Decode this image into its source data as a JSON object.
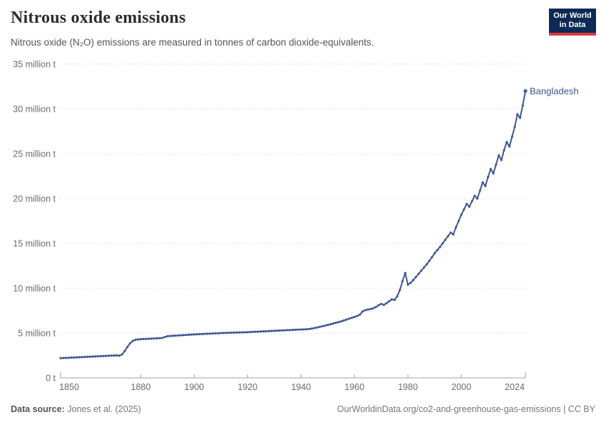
{
  "header": {
    "title": "Nitrous oxide emissions",
    "subtitle": "Nitrous oxide (N₂O) emissions are measured in tonnes of carbon dioxide-equivalents.",
    "logo_line1": "Our World",
    "logo_line2": "in Data"
  },
  "footer": {
    "source_label": "Data source:",
    "source_value": "Jones et al. (2025)",
    "link": "OurWorldinData.org/co2-and-greenhouse-gas-emissions | CC BY"
  },
  "chart_data": {
    "type": "line",
    "title": "Nitrous oxide emissions",
    "unit": "tonnes of carbon dioxide-equivalents",
    "ylim_millions": [
      0,
      35
    ],
    "grid": "horizontal-dashed",
    "legend_position": "end-of-line-label",
    "y_ticks": [
      {
        "v": 0,
        "label": "0 t"
      },
      {
        "v": 5,
        "label": "5 million t"
      },
      {
        "v": 10,
        "label": "10 million t"
      },
      {
        "v": 15,
        "label": "15 million t"
      },
      {
        "v": 20,
        "label": "20 million t"
      },
      {
        "v": 25,
        "label": "25 million t"
      },
      {
        "v": 30,
        "label": "30 million t"
      },
      {
        "v": 35,
        "label": "35 million t"
      }
    ],
    "x_ticks": [
      1850,
      1880,
      1900,
      1920,
      1940,
      1960,
      1980,
      2000,
      2024
    ],
    "series": [
      {
        "name": "Bangladesh",
        "color": "#3e598f",
        "x_start": 1850,
        "x_end": 2024,
        "values_millions": [
          2.2,
          2.21,
          2.23,
          2.24,
          2.26,
          2.27,
          2.29,
          2.3,
          2.32,
          2.33,
          2.35,
          2.36,
          2.38,
          2.39,
          2.41,
          2.42,
          2.44,
          2.45,
          2.47,
          2.48,
          2.5,
          2.51,
          2.48,
          2.62,
          3.0,
          3.45,
          3.85,
          4.12,
          4.25,
          4.3,
          4.32,
          4.34,
          4.35,
          4.37,
          4.38,
          4.4,
          4.41,
          4.43,
          4.45,
          4.55,
          4.65,
          4.67,
          4.69,
          4.71,
          4.73,
          4.75,
          4.77,
          4.79,
          4.81,
          4.83,
          4.85,
          4.86,
          4.88,
          4.89,
          4.91,
          4.92,
          4.94,
          4.95,
          4.97,
          4.98,
          5.0,
          5.01,
          5.02,
          5.03,
          5.04,
          5.05,
          5.06,
          5.07,
          5.08,
          5.09,
          5.1,
          5.12,
          5.13,
          5.15,
          5.16,
          5.18,
          5.19,
          5.21,
          5.22,
          5.24,
          5.25,
          5.27,
          5.28,
          5.3,
          5.31,
          5.33,
          5.34,
          5.36,
          5.37,
          5.39,
          5.4,
          5.41,
          5.43,
          5.45,
          5.5,
          5.56,
          5.62,
          5.69,
          5.76,
          5.83,
          5.9,
          5.98,
          6.06,
          6.14,
          6.22,
          6.3,
          6.4,
          6.5,
          6.6,
          6.7,
          6.8,
          6.9,
          7.05,
          7.4,
          7.55,
          7.62,
          7.68,
          7.76,
          7.9,
          8.1,
          8.25,
          8.15,
          8.32,
          8.55,
          8.76,
          8.7,
          9.1,
          9.8,
          10.8,
          11.7,
          10.4,
          10.6,
          10.9,
          11.25,
          11.6,
          11.95,
          12.3,
          12.65,
          13.05,
          13.45,
          13.9,
          14.25,
          14.6,
          15.0,
          15.4,
          15.8,
          16.2,
          16.0,
          16.8,
          17.5,
          18.2,
          18.8,
          19.4,
          19.1,
          19.7,
          20.3,
          20.0,
          20.9,
          21.8,
          21.4,
          22.4,
          23.3,
          22.8,
          23.8,
          24.8,
          24.3,
          25.4,
          26.3,
          25.8,
          26.9,
          28.0,
          29.4,
          29.0,
          30.4,
          32.0
        ]
      }
    ]
  },
  "colors": {
    "series": "#3e598f",
    "grid": "#dddddd",
    "axis": "#a1a1a1",
    "axis_text": "#6b6b6b",
    "logo_bg": "#0d2a54",
    "logo_accent": "#d93a3f"
  }
}
